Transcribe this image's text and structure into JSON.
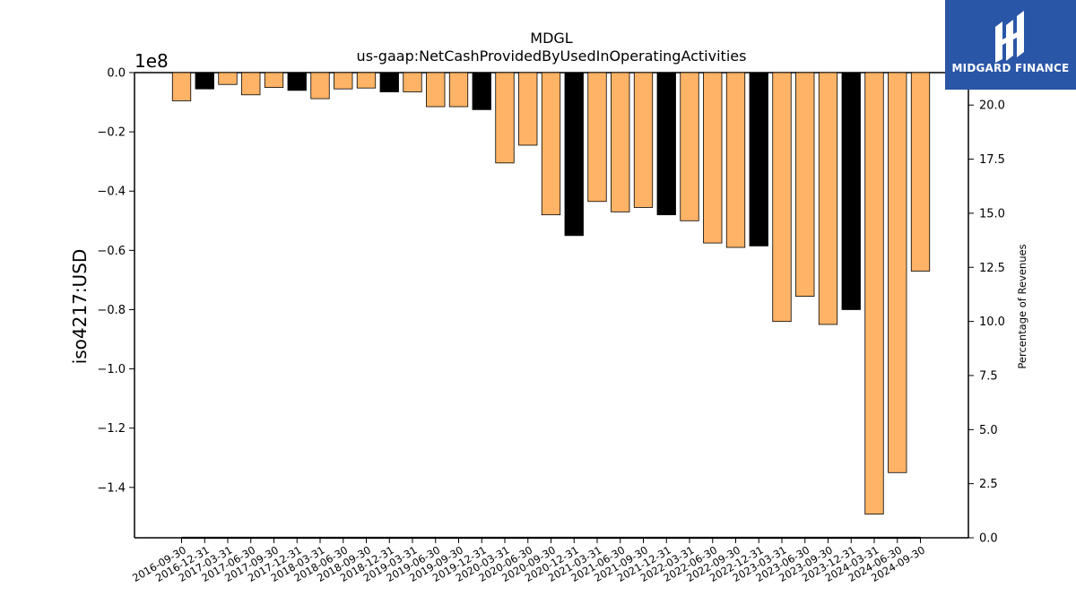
{
  "chart_data": {
    "type": "bar",
    "title": "MDGL",
    "subtitle": "us-gaap:NetCashProvidedByUsedInOperatingActivities",
    "ylabel": "iso4217:USD",
    "y2label": "Percentage of Revenues",
    "y_offset_label": "1e8",
    "ylim": [
      -1.57,
      0.0
    ],
    "y2lim": [
      0.0,
      21.5
    ],
    "y_ticks": [
      "0.0",
      "−0.2",
      "−0.4",
      "−0.6",
      "−0.8",
      "−1.0",
      "−1.2",
      "−1.4"
    ],
    "y2_ticks": [
      "0.0",
      "2.5",
      "5.0",
      "7.5",
      "10.0",
      "12.5",
      "15.0",
      "17.5",
      "20.0"
    ],
    "categories": [
      "2016-09-30",
      "2016-12-31",
      "2017-03-31",
      "2017-06-30",
      "2017-09-30",
      "2017-12-31",
      "2018-03-31",
      "2018-06-30",
      "2018-09-30",
      "2018-12-31",
      "2019-03-31",
      "2019-06-30",
      "2019-09-30",
      "2019-12-31",
      "2020-03-31",
      "2020-06-30",
      "2020-09-30",
      "2020-12-31",
      "2021-03-31",
      "2021-06-30",
      "2021-09-30",
      "2021-12-31",
      "2022-03-31",
      "2022-06-30",
      "2022-09-30",
      "2022-12-31",
      "2023-03-31",
      "2023-06-30",
      "2023-09-30",
      "2023-12-31",
      "2024-03-31",
      "2024-06-30",
      "2024-09-30"
    ],
    "values": [
      -0.095,
      -0.055,
      -0.04,
      -0.075,
      -0.05,
      -0.06,
      -0.088,
      -0.055,
      -0.052,
      -0.065,
      -0.065,
      -0.115,
      -0.115,
      -0.125,
      -0.305,
      -0.245,
      -0.48,
      -0.55,
      -0.435,
      -0.47,
      -0.455,
      -0.48,
      -0.5,
      -0.575,
      -0.59,
      -0.585,
      -0.84,
      -0.755,
      -0.85,
      -0.8,
      -1.49,
      -1.35,
      -0.67
    ],
    "highlighted": [
      false,
      true,
      false,
      false,
      false,
      true,
      false,
      false,
      false,
      true,
      false,
      false,
      false,
      true,
      false,
      false,
      false,
      true,
      false,
      false,
      false,
      true,
      false,
      false,
      false,
      true,
      false,
      false,
      false,
      true,
      false,
      false,
      false
    ],
    "colors": {
      "regular": "#ffb366",
      "highlight": "#000000",
      "edge": "#000000"
    },
    "grid": false,
    "legend": "none"
  },
  "logo": {
    "text": "MIDGARD FINANCE",
    "icon": "midgard-logo-icon",
    "background": "#2a56a8"
  }
}
